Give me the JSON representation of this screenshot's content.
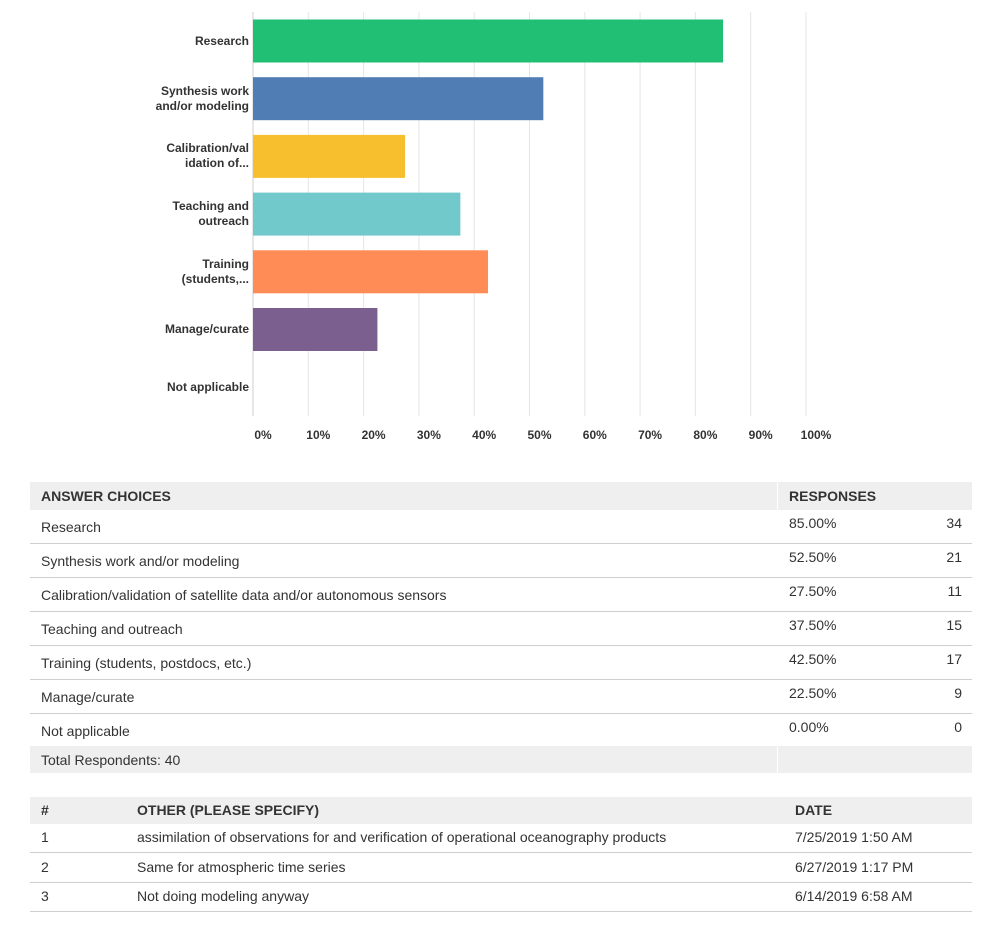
{
  "chart_data": {
    "type": "bar",
    "orientation": "horizontal",
    "categories": [
      "Research",
      "Synthesis work\nand/or modeling",
      "Calibration/val\nidation of...",
      "Teaching and\noutreach",
      "Training\n(students,...",
      "Manage/curate",
      "Not applicable"
    ],
    "values": [
      85,
      52.5,
      27.5,
      37.5,
      42.5,
      22.5,
      0
    ],
    "colors": [
      "#21bf73",
      "#517db5",
      "#f7bf2d",
      "#71c9cb",
      "#ff8c56",
      "#7b5f8f",
      "#999999"
    ],
    "xlim": [
      0,
      100
    ],
    "xticks": [
      {
        "value": 0,
        "label": "0%"
      },
      {
        "value": 10,
        "label": "10%"
      },
      {
        "value": 20,
        "label": "20%"
      },
      {
        "value": 30,
        "label": "30%"
      },
      {
        "value": 40,
        "label": "40%"
      },
      {
        "value": 50,
        "label": "50%"
      },
      {
        "value": 60,
        "label": "60%"
      },
      {
        "value": 70,
        "label": "70%"
      },
      {
        "value": 80,
        "label": "80%"
      },
      {
        "value": 90,
        "label": "90%"
      },
      {
        "value": 100,
        "label": "100%"
      }
    ],
    "grid": true
  },
  "answer_table": {
    "header": [
      "ANSWER CHOICES",
      "RESPONSES"
    ],
    "rows": [
      [
        "Research",
        "85.00%",
        "34"
      ],
      [
        "Synthesis work and/or modeling",
        "52.50%",
        "21"
      ],
      [
        "Calibration/validation of satellite data and/or autonomous sensors",
        "27.50%",
        "11"
      ],
      [
        "Teaching and outreach",
        "37.50%",
        "15"
      ],
      [
        "Training (students, postdocs, etc.)",
        "42.50%",
        "17"
      ],
      [
        "Manage/curate",
        "22.50%",
        "9"
      ],
      [
        "Not applicable",
        "0.00%",
        "0"
      ]
    ],
    "total": "Total Respondents: 40"
  },
  "other_table": {
    "header": [
      "#",
      "OTHER (PLEASE SPECIFY)",
      "DATE"
    ],
    "rows": [
      [
        "1",
        "assimilation of observations for and verification of operational oceanography products",
        "7/25/2019 1:50 AM"
      ],
      [
        "2",
        "Same for atmospheric time series",
        "6/27/2019 1:17 PM"
      ],
      [
        "3",
        "Not doing modeling anyway",
        "6/14/2019 6:58 AM"
      ]
    ]
  }
}
